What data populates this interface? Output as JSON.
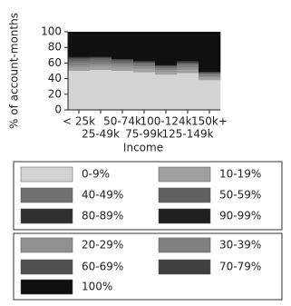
{
  "chart_data": {
    "type": "stacked-bar",
    "xlabel": "Income",
    "ylabel": "% of account-months",
    "categories": [
      "< 25k",
      "25-49k",
      "50-74k",
      "75-99k",
      "100-124k",
      "125-149k",
      "150k+"
    ],
    "ylim": [
      0,
      100
    ],
    "yticks": [
      0,
      20,
      40,
      60,
      80,
      100
    ],
    "series": [
      {
        "name": "0-9%",
        "color": "#d3d3d3",
        "values": [
          50,
          51,
          50,
          48,
          45,
          47,
          38
        ]
      },
      {
        "name": "10-19%",
        "color": "#a0a0a0",
        "values": [
          4,
          4,
          4,
          4,
          3,
          4,
          3
        ]
      },
      {
        "name": "20-29%",
        "color": "#909090",
        "values": [
          3,
          3,
          3,
          3,
          3,
          3,
          2
        ]
      },
      {
        "name": "30-39%",
        "color": "#808080",
        "values": [
          3,
          3,
          2,
          2,
          2,
          2,
          2
        ]
      },
      {
        "name": "40-49%",
        "color": "#707070",
        "values": [
          2,
          2,
          2,
          2,
          1,
          2,
          1
        ]
      },
      {
        "name": "50-59%",
        "color": "#606060",
        "values": [
          2,
          2,
          1,
          1,
          1,
          1,
          1
        ]
      },
      {
        "name": "60-69%",
        "color": "#505050",
        "values": [
          1,
          1,
          1,
          1,
          1,
          1,
          1
        ]
      },
      {
        "name": "70-79%",
        "color": "#404040",
        "values": [
          1,
          1,
          1,
          1,
          1,
          1,
          0
        ]
      },
      {
        "name": "80-89%",
        "color": "#303030",
        "values": [
          1,
          1,
          1,
          0,
          0,
          1,
          0
        ]
      },
      {
        "name": "90-99%",
        "color": "#202020",
        "values": [
          1,
          0,
          0,
          0,
          0,
          0,
          0
        ]
      },
      {
        "name": "100%",
        "color": "#101010",
        "values": [
          32,
          32,
          35,
          38,
          43,
          38,
          52
        ]
      }
    ]
  }
}
